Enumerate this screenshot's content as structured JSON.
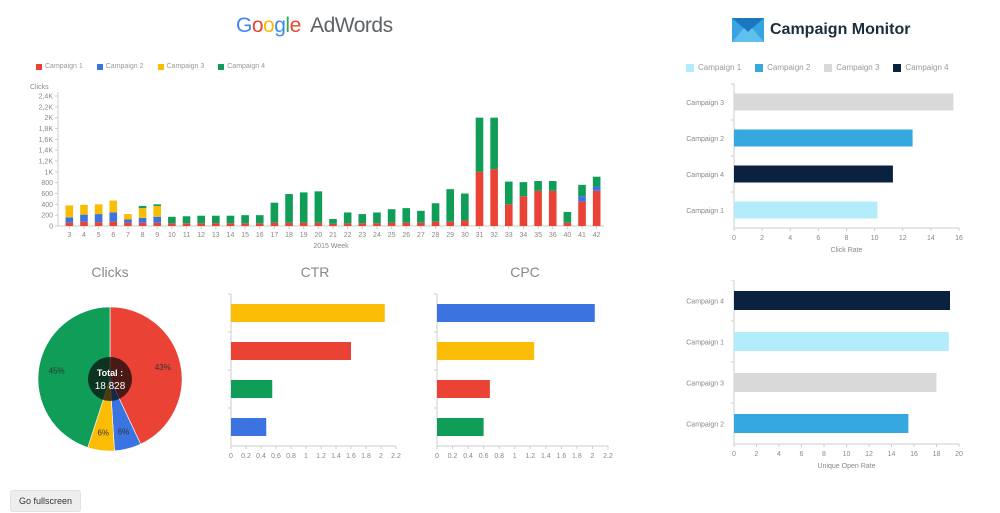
{
  "header": {
    "adwords_logo": {
      "google": [
        "G",
        "o",
        "o",
        "g",
        "l",
        "e"
      ],
      "adwords": "AdWords"
    },
    "campaign_monitor_logo": "Campaign Monitor"
  },
  "colors": {
    "red": "#ea4335",
    "blue": "#3b73e0",
    "yellow": "#fbbc05",
    "green": "#0f9d58",
    "cm_light": "#b3ecfb",
    "cm_mid": "#35a8df",
    "cm_grey": "#d9d9d9",
    "cm_dark": "#0a2240"
  },
  "adwords_legend": [
    "Campaign 1",
    "Campaign 2",
    "Campaign 3",
    "Campaign 4"
  ],
  "cm_legend": [
    "Campaign 1",
    "Campaign 2",
    "Campaign 3",
    "Campaign 4"
  ],
  "chart_data": [
    {
      "type": "bar",
      "stacked": true,
      "title": "",
      "ylabel": "Clicks",
      "xlabel": "2015 Week",
      "ylim": [
        0,
        2400
      ],
      "y_ticks": [
        "0",
        "200",
        "400",
        "600",
        "800",
        "1K",
        "1,2K",
        "1,4K",
        "1,6K",
        "1,8K",
        "2K",
        "2,2K",
        "2,4K"
      ],
      "categories": [
        "3",
        "4",
        "5",
        "6",
        "7",
        "8",
        "9",
        "10",
        "11",
        "12",
        "13",
        "14",
        "15",
        "16",
        "17",
        "18",
        "19",
        "20",
        "21",
        "22",
        "23",
        "24",
        "25",
        "26",
        "27",
        "28",
        "29",
        "30",
        "31",
        "32",
        "33",
        "34",
        "35",
        "36",
        "40",
        "41",
        "42"
      ],
      "series": [
        {
          "name": "Campaign 1",
          "values": [
            60,
            80,
            70,
            80,
            60,
            60,
            60,
            50,
            50,
            50,
            50,
            50,
            50,
            50,
            60,
            60,
            60,
            60,
            40,
            50,
            50,
            50,
            60,
            60,
            60,
            80,
            80,
            100,
            1000,
            1050,
            400,
            550,
            650,
            650,
            60,
            450,
            650
          ]
        },
        {
          "name": "Campaign 2",
          "values": [
            100,
            130,
            150,
            170,
            60,
            90,
            110,
            0,
            0,
            0,
            0,
            0,
            0,
            0,
            0,
            0,
            0,
            0,
            0,
            0,
            0,
            0,
            0,
            0,
            0,
            0,
            0,
            0,
            0,
            0,
            0,
            0,
            0,
            0,
            0,
            100,
            80
          ]
        },
        {
          "name": "Campaign 3",
          "values": [
            220,
            180,
            180,
            220,
            100,
            180,
            200,
            0,
            0,
            0,
            0,
            0,
            0,
            0,
            0,
            0,
            0,
            0,
            0,
            0,
            0,
            0,
            0,
            0,
            0,
            0,
            0,
            0,
            0,
            0,
            0,
            0,
            0,
            0,
            0,
            0,
            0
          ]
        },
        {
          "name": "Campaign 4",
          "values": [
            0,
            0,
            0,
            0,
            0,
            40,
            30,
            120,
            130,
            140,
            140,
            140,
            150,
            150,
            370,
            530,
            560,
            580,
            90,
            200,
            170,
            200,
            250,
            270,
            220,
            340,
            600,
            500,
            1000,
            950,
            420,
            260,
            180,
            180,
            200,
            210,
            180
          ]
        }
      ]
    },
    {
      "type": "pie",
      "title": "Clicks",
      "center_label": "Total :",
      "center_value": "18 828",
      "slices": [
        {
          "name": "Campaign 1",
          "value": 43,
          "label": "43%"
        },
        {
          "name": "Campaign 2",
          "value": 6,
          "label": "6%"
        },
        {
          "name": "Campaign 3",
          "value": 6,
          "label": "6%"
        },
        {
          "name": "Campaign 4",
          "value": 45,
          "label": "45%"
        }
      ]
    },
    {
      "type": "bar",
      "orientation": "horizontal",
      "title": "CTR",
      "xlim": [
        0,
        2.2
      ],
      "x_ticks": [
        "0",
        "0.2",
        "0.4",
        "0.6",
        "0.8",
        "1",
        "1.2",
        "1.4",
        "1.6",
        "1.8",
        "2",
        "2.2"
      ],
      "bars": [
        {
          "name": "Campaign 3",
          "value": 2.05
        },
        {
          "name": "Campaign 1",
          "value": 1.6
        },
        {
          "name": "Campaign 4",
          "value": 0.55
        },
        {
          "name": "Campaign 2",
          "value": 0.47
        }
      ]
    },
    {
      "type": "bar",
      "orientation": "horizontal",
      "title": "CPC",
      "xlim": [
        0,
        2.2
      ],
      "x_ticks": [
        "0",
        "0.2",
        "0.4",
        "0.6",
        "0.8",
        "1",
        "1.2",
        "1.4",
        "1.6",
        "1.8",
        "2",
        "2.2"
      ],
      "bars": [
        {
          "name": "Campaign 2",
          "value": 2.03
        },
        {
          "name": "Campaign 3",
          "value": 1.25
        },
        {
          "name": "Campaign 1",
          "value": 0.68
        },
        {
          "name": "Campaign 4",
          "value": 0.6
        }
      ]
    },
    {
      "type": "bar",
      "orientation": "horizontal",
      "title": "",
      "xlabel": "Click Rate",
      "xlim": [
        0,
        16
      ],
      "x_ticks": [
        "0",
        "2",
        "4",
        "6",
        "8",
        "10",
        "12",
        "14",
        "16"
      ],
      "bars": [
        {
          "name": "Campaign 3",
          "value": 15.6
        },
        {
          "name": "Campaign 2",
          "value": 12.7
        },
        {
          "name": "Campaign 4",
          "value": 11.3
        },
        {
          "name": "Campaign 1",
          "value": 10.2
        }
      ]
    },
    {
      "type": "bar",
      "orientation": "horizontal",
      "title": "",
      "xlabel": "Unique Open Rate",
      "xlim": [
        0,
        20
      ],
      "x_ticks": [
        "0",
        "2",
        "4",
        "6",
        "8",
        "10",
        "12",
        "14",
        "16",
        "18",
        "20"
      ],
      "bars": [
        {
          "name": "Campaign 4",
          "value": 19.2
        },
        {
          "name": "Campaign 1",
          "value": 19.1
        },
        {
          "name": "Campaign 3",
          "value": 18.0
        },
        {
          "name": "Campaign 2",
          "value": 15.5
        }
      ]
    }
  ],
  "fullscreen_button": "Go fullscreen"
}
